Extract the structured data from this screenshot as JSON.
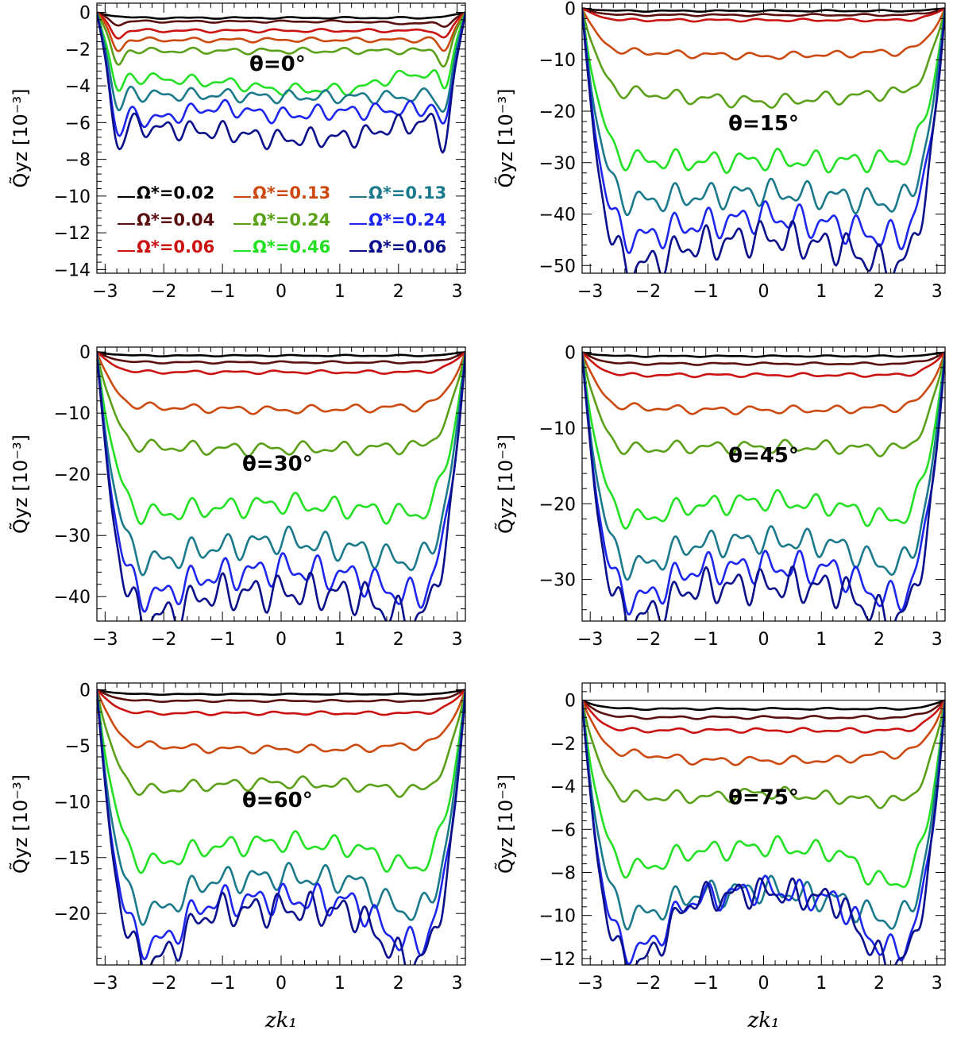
{
  "chart_data": [
    {
      "type": "line",
      "panel": "top-left",
      "annotation": "θ=0°",
      "xlabel": "",
      "ylabel": "Q̃yz [10⁻³]",
      "xlim": [
        -3.14,
        3.14
      ],
      "ylim": [
        -14.2,
        0.5
      ],
      "xticks": [
        -3,
        -2,
        -1,
        0,
        1,
        2,
        3
      ],
      "yticks": [
        0,
        -2,
        -4,
        -6,
        -8,
        -10,
        -12,
        -14
      ],
      "wiggle": 0.22,
      "edge_dip": 3,
      "series": [
        {
          "name": "Ω*=0.02",
          "color": "#000000",
          "values": [
            -0.3,
            -0.3,
            -0.3,
            -0.3,
            -0.3
          ]
        },
        {
          "name": "Ω*=0.04",
          "color": "#5a0f0f",
          "values": [
            -0.5,
            -0.5,
            -0.5,
            -0.5,
            -0.6
          ]
        },
        {
          "name": "Ω*=0.06",
          "color": "#cc1111",
          "values": [
            -1.0,
            -1.0,
            -1.0,
            -1.0,
            -1.0
          ]
        },
        {
          "name": "Ω*=0.13",
          "color": "#cc4a10",
          "values": [
            -1.5,
            -1.5,
            -1.5,
            -1.5,
            -1.5
          ]
        },
        {
          "name": "Ω*=0.24",
          "color": "#5aa018",
          "values": [
            -2.1,
            -2.1,
            -2.1,
            -2.1,
            -2.1
          ]
        },
        {
          "name": "Ω*=0.46",
          "color": "#22e022",
          "values": [
            -3.6,
            -3.8,
            -4.2,
            -4.2,
            -3.4
          ]
        },
        {
          "name": "Ω*=0.13",
          "color": "#1a7a8c",
          "values": [
            -4.5,
            -4.5,
            -4.6,
            -4.6,
            -4.6
          ]
        },
        {
          "name": "Ω*=0.24",
          "color": "#1c26ee",
          "values": [
            -5.8,
            -5.2,
            -5.6,
            -5.4,
            -5.3
          ]
        },
        {
          "name": "Ω*=0.06",
          "color": "#0a0f8c",
          "values": [
            -6.3,
            -6.5,
            -6.9,
            -6.8,
            -6.1
          ]
        }
      ],
      "legend": {
        "placement": "center-left",
        "entries": [
          {
            "label": "Ω*=0.02",
            "color": "#000000"
          },
          {
            "label": "Ω*=0.13",
            "color": "#cc4a10"
          },
          {
            "label": "Ω*=0.13",
            "color": "#1a7a8c"
          },
          {
            "label": "Ω*=0.04",
            "color": "#5a0f0f"
          },
          {
            "label": "Ω*=0.24",
            "color": "#5aa018"
          },
          {
            "label": "Ω*=0.24",
            "color": "#1c26ee"
          },
          {
            "label": "Ω*=0.06",
            "color": "#cc1111"
          },
          {
            "label": "Ω*=0.46",
            "color": "#22e022"
          },
          {
            "label": "Ω*=0.06",
            "color": "#0a0f8c"
          }
        ]
      }
    },
    {
      "type": "line",
      "panel": "top-right",
      "annotation": "θ=15°",
      "xlabel": "",
      "ylabel": "Q̃yz [10⁻³]",
      "xlim": [
        -3.14,
        3.14
      ],
      "ylim": [
        -51.5,
        1.0
      ],
      "xticks": [
        -3,
        -2,
        -1,
        0,
        1,
        2,
        3
      ],
      "yticks": [
        0,
        -10,
        -20,
        -30,
        -40,
        -50
      ],
      "wiggle": 0.25,
      "edge_dip": 0,
      "series": [
        {
          "name": "Ω*=0.02",
          "color": "#000000",
          "values": [
            -0.5,
            -0.5,
            -0.5,
            -0.5,
            -0.5
          ]
        },
        {
          "name": "Ω*=0.04",
          "color": "#5a0f0f",
          "values": [
            -1.3,
            -1.3,
            -1.3,
            -1.3,
            -1.3
          ]
        },
        {
          "name": "Ω*=0.06",
          "color": "#cc1111",
          "values": [
            -2.3,
            -2.3,
            -2.3,
            -2.3,
            -2.3
          ]
        },
        {
          "name": "Ω*=0.13",
          "color": "#cc4a10",
          "values": [
            -8.5,
            -9.0,
            -9.3,
            -9.0,
            -8.5
          ]
        },
        {
          "name": "Ω*=0.24",
          "color": "#5aa018",
          "values": [
            -16.5,
            -17.5,
            -18.2,
            -17.5,
            -16.5
          ]
        },
        {
          "name": "Ω*=0.46",
          "color": "#22e022",
          "values": [
            -29.5,
            -29.8,
            -29.5,
            -29.8,
            -29.5
          ]
        },
        {
          "name": "Ω*=0.13",
          "color": "#1a7a8c",
          "values": [
            -37.5,
            -36.5,
            -35.8,
            -36.5,
            -37.8
          ]
        },
        {
          "name": "Ω*=0.24",
          "color": "#1c26ee",
          "values": [
            -44.5,
            -42.0,
            -40.5,
            -42.0,
            -44.5
          ]
        },
        {
          "name": "Ω*=0.06",
          "color": "#0a0f8c",
          "values": [
            -50.0,
            -46.0,
            -44.5,
            -46.0,
            -50.0
          ]
        }
      ]
    },
    {
      "type": "line",
      "panel": "middle-left",
      "annotation": "θ=30°",
      "xlabel": "",
      "ylabel": "Q̃yz [10⁻³]",
      "xlim": [
        -3.14,
        3.14
      ],
      "ylim": [
        -44,
        0.8
      ],
      "xticks": [
        -3,
        -2,
        -1,
        0,
        1,
        2,
        3
      ],
      "yticks": [
        0,
        -10,
        -20,
        -30,
        -40
      ],
      "wiggle": 0.2,
      "edge_dip": 0,
      "series": [
        {
          "name": "Ω*=0.02",
          "color": "#000000",
          "values": [
            -0.6,
            -0.6,
            -0.6,
            -0.6,
            -0.6
          ]
        },
        {
          "name": "Ω*=0.04",
          "color": "#5a0f0f",
          "values": [
            -1.7,
            -1.7,
            -1.7,
            -1.7,
            -1.7
          ]
        },
        {
          "name": "Ω*=0.06",
          "color": "#cc1111",
          "values": [
            -3.3,
            -3.3,
            -3.3,
            -3.3,
            -3.3
          ]
        },
        {
          "name": "Ω*=0.13",
          "color": "#cc4a10",
          "values": [
            -9.0,
            -9.3,
            -9.5,
            -9.3,
            -9.0
          ]
        },
        {
          "name": "Ω*=0.24",
          "color": "#5aa018",
          "values": [
            -15.5,
            -15.8,
            -15.8,
            -15.8,
            -15.5
          ]
        },
        {
          "name": "Ω*=0.46",
          "color": "#22e022",
          "values": [
            -26.5,
            -25.5,
            -24.8,
            -25.5,
            -26.5
          ]
        },
        {
          "name": "Ω*=0.13",
          "color": "#1a7a8c",
          "values": [
            -34.2,
            -32.0,
            -30.8,
            -32.0,
            -34.2
          ]
        },
        {
          "name": "Ω*=0.24",
          "color": "#1c26ee",
          "values": [
            -39.8,
            -36.5,
            -35.5,
            -36.5,
            -39.8
          ]
        },
        {
          "name": "Ω*=0.06",
          "color": "#0a0f8c",
          "values": [
            -43.5,
            -39.5,
            -39.3,
            -39.5,
            -43.5
          ]
        }
      ]
    },
    {
      "type": "line",
      "panel": "middle-right",
      "annotation": "θ=45°",
      "xlabel": "",
      "ylabel": "Q̃yz [10⁻³]",
      "xlim": [
        -3.14,
        3.14
      ],
      "ylim": [
        -35.5,
        0.7
      ],
      "xticks": [
        -3,
        -2,
        -1,
        0,
        1,
        2,
        3
      ],
      "yticks": [
        0,
        -10,
        -20,
        -30
      ],
      "wiggle": 0.2,
      "edge_dip": 0,
      "series": [
        {
          "name": "Ω*=0.02",
          "color": "#000000",
          "values": [
            -0.5,
            -0.5,
            -0.5,
            -0.5,
            -0.5
          ]
        },
        {
          "name": "Ω*=0.04",
          "color": "#5a0f0f",
          "values": [
            -1.5,
            -1.5,
            -1.5,
            -1.5,
            -1.5
          ]
        },
        {
          "name": "Ω*=0.06",
          "color": "#cc1111",
          "values": [
            -3.0,
            -3.0,
            -3.0,
            -3.0,
            -3.0
          ]
        },
        {
          "name": "Ω*=0.13",
          "color": "#cc4a10",
          "values": [
            -7.3,
            -7.6,
            -7.6,
            -7.6,
            -7.3
          ]
        },
        {
          "name": "Ω*=0.24",
          "color": "#5aa018",
          "values": [
            -12.8,
            -12.5,
            -12.5,
            -12.5,
            -12.8
          ]
        },
        {
          "name": "Ω*=0.46",
          "color": "#22e022",
          "values": [
            -22.0,
            -20.2,
            -19.6,
            -20.2,
            -22.0
          ]
        },
        {
          "name": "Ω*=0.13",
          "color": "#1a7a8c",
          "values": [
            -28.2,
            -25.3,
            -24.8,
            -25.3,
            -28.2
          ]
        },
        {
          "name": "Ω*=0.24",
          "color": "#1c26ee",
          "values": [
            -32.5,
            -28.6,
            -28.3,
            -28.6,
            -32.5
          ]
        },
        {
          "name": "Ω*=0.06",
          "color": "#0a0f8c",
          "values": [
            -35.0,
            -31.0,
            -30.8,
            -31.0,
            -35.0
          ]
        }
      ]
    },
    {
      "type": "line",
      "panel": "bottom-left",
      "annotation": "θ=60°",
      "xlabel": "zk₁",
      "ylabel": "Q̃yz [10⁻³]",
      "xlim": [
        -3.14,
        3.14
      ],
      "ylim": [
        -24.6,
        0.6
      ],
      "xticks": [
        -3,
        -2,
        -1,
        0,
        1,
        2,
        3
      ],
      "yticks": [
        0,
        -5,
        -10,
        -15,
        -20
      ],
      "wiggle": 0.12,
      "edge_dip": 0,
      "series": [
        {
          "name": "Ω*=0.02",
          "color": "#000000",
          "values": [
            -0.4,
            -0.4,
            -0.4,
            -0.4,
            -0.4
          ]
        },
        {
          "name": "Ω*=0.04",
          "color": "#5a0f0f",
          "values": [
            -1.0,
            -1.0,
            -1.0,
            -1.0,
            -1.0
          ]
        },
        {
          "name": "Ω*=0.06",
          "color": "#cc1111",
          "values": [
            -2.1,
            -2.1,
            -2.1,
            -2.1,
            -2.1
          ]
        },
        {
          "name": "Ω*=0.13",
          "color": "#cc4a10",
          "values": [
            -5.0,
            -5.3,
            -5.3,
            -5.3,
            -5.0
          ]
        },
        {
          "name": "Ω*=0.24",
          "color": "#5aa018",
          "values": [
            -9.0,
            -8.5,
            -8.3,
            -8.5,
            -9.0
          ]
        },
        {
          "name": "Ω*=0.46",
          "color": "#22e022",
          "values": [
            -15.5,
            -14.0,
            -13.6,
            -14.0,
            -15.8
          ]
        },
        {
          "name": "Ω*=0.13",
          "color": "#1a7a8c",
          "values": [
            -19.8,
            -17.0,
            -16.7,
            -17.0,
            -19.8
          ]
        },
        {
          "name": "Ω*=0.24",
          "color": "#1c26ee",
          "values": [
            -22.7,
            -18.9,
            -18.7,
            -18.9,
            -22.7
          ]
        },
        {
          "name": "Ω*=0.06",
          "color": "#0a0f8c",
          "values": [
            -24.2,
            -19.8,
            -19.6,
            -19.8,
            -24.2
          ]
        }
      ]
    },
    {
      "type": "line",
      "panel": "bottom-right",
      "annotation": "θ=75°",
      "xlabel": "zk₁",
      "ylabel": "Q̃yz [10⁻³]",
      "xlim": [
        -3.14,
        3.14
      ],
      "ylim": [
        -12.3,
        0.8
      ],
      "xticks": [
        -3,
        -2,
        -1,
        0,
        1,
        2,
        3
      ],
      "yticks": [
        0,
        -2,
        -4,
        -6,
        -8,
        -10,
        -12
      ],
      "wiggle": 0.18,
      "edge_dip": 0,
      "zero_line": true,
      "series": [
        {
          "name": "Ω*=0.02",
          "color": "#000000",
          "values": [
            -0.4,
            -0.4,
            -0.4,
            -0.4,
            -0.4
          ]
        },
        {
          "name": "Ω*=0.04",
          "color": "#5a0f0f",
          "values": [
            -0.8,
            -0.8,
            -0.8,
            -0.8,
            -0.8
          ]
        },
        {
          "name": "Ω*=0.06",
          "color": "#cc1111",
          "values": [
            -1.4,
            -1.4,
            -1.4,
            -1.4,
            -1.4
          ]
        },
        {
          "name": "Ω*=0.13",
          "color": "#cc4a10",
          "values": [
            -2.5,
            -2.8,
            -2.8,
            -2.8,
            -2.5
          ]
        },
        {
          "name": "Ω*=0.24",
          "color": "#5aa018",
          "values": [
            -4.5,
            -4.5,
            -4.3,
            -4.5,
            -4.7
          ]
        },
        {
          "name": "Ω*=0.46",
          "color": "#22e022",
          "values": [
            -7.8,
            -7.0,
            -6.8,
            -7.0,
            -8.5
          ]
        },
        {
          "name": "Ω*=0.13",
          "color": "#1a7a8c",
          "values": [
            -10.0,
            -9.0,
            -8.8,
            -9.2,
            -10.2
          ]
        },
        {
          "name": "Ω*=0.24",
          "color": "#1c26ee",
          "values": [
            -11.6,
            -9.2,
            -8.8,
            -9.2,
            -11.6
          ]
        },
        {
          "name": "Ω*=0.06",
          "color": "#0a0f8c",
          "values": [
            -12.2,
            -9.2,
            -8.9,
            -9.2,
            -12.2
          ]
        }
      ]
    }
  ]
}
